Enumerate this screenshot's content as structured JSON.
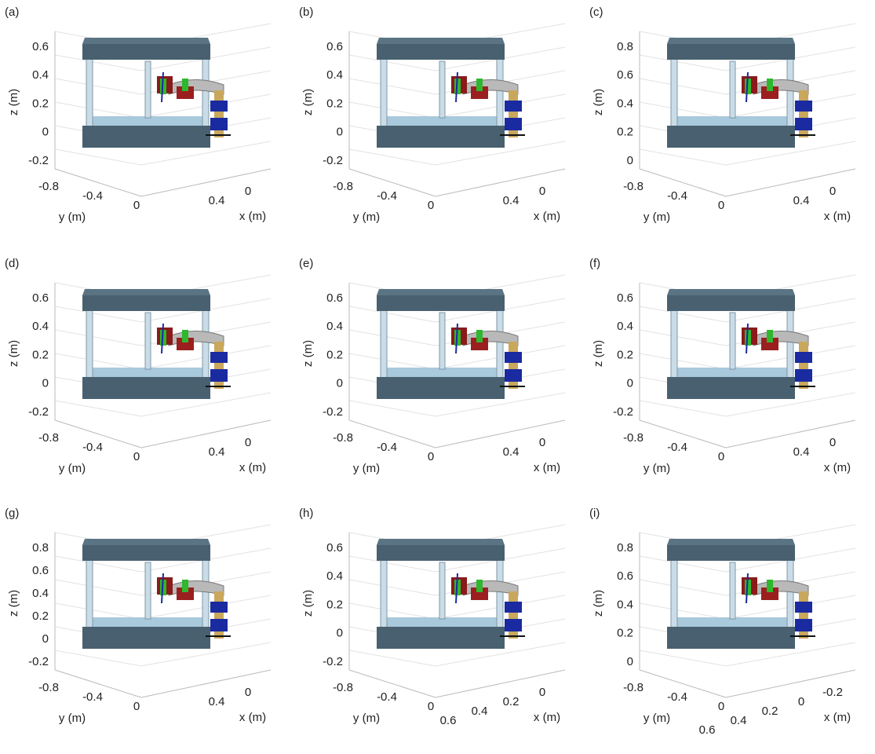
{
  "panels": [
    {
      "label": "(a)",
      "z_axis": "z (m)",
      "y_axis": "y (m)",
      "x_axis": "x (m)",
      "zticks": [
        "0.6",
        "0.4",
        "0.2",
        "0",
        "-0.2"
      ],
      "yticks": [
        "-0.8",
        "-0.4",
        "0"
      ],
      "xticks": [
        "0.4",
        "0"
      ]
    },
    {
      "label": "(b)",
      "z_axis": "z (m)",
      "y_axis": "y (m)",
      "x_axis": "x (m)",
      "zticks": [
        "0.6",
        "0.4",
        "0.2",
        "0",
        "-0.2"
      ],
      "yticks": [
        "-0.8",
        "-0.4",
        "0"
      ],
      "xticks": [
        "0.4",
        "0"
      ]
    },
    {
      "label": "(c)",
      "z_axis": "z (m)",
      "y_axis": "y (m)",
      "x_axis": "x (m)",
      "zticks": [
        "0.8",
        "0.6",
        "0.4",
        "0.2",
        "0"
      ],
      "yticks": [
        "-0.8",
        "-0.4",
        "0"
      ],
      "xticks": [
        "0.4",
        "0"
      ]
    },
    {
      "label": "(d)",
      "z_axis": "z (m)",
      "y_axis": "y (m)",
      "x_axis": "x (m)",
      "zticks": [
        "0.6",
        "0.4",
        "0.2",
        "0",
        "-0.2"
      ],
      "yticks": [
        "-0.8",
        "-0.4",
        "0"
      ],
      "xticks": [
        "0.4",
        "0"
      ]
    },
    {
      "label": "(e)",
      "z_axis": "z (m)",
      "y_axis": "y (m)",
      "x_axis": "x (m)",
      "zticks": [
        "0.6",
        "0.4",
        "0.2",
        "0",
        "-0.2"
      ],
      "yticks": [
        "-0.8",
        "-0.4",
        "0"
      ],
      "xticks": [
        "0.4",
        "0"
      ]
    },
    {
      "label": "(f)",
      "z_axis": "z (m)",
      "y_axis": "y (m)",
      "x_axis": "x (m)",
      "zticks": [
        "0.6",
        "0.4",
        "0.2",
        "0",
        "-0.2"
      ],
      "yticks": [
        "-0.8",
        "-0.4",
        "0"
      ],
      "xticks": [
        "0.4",
        "0"
      ]
    },
    {
      "label": "(g)",
      "z_axis": "z (m)",
      "y_axis": "y (m)",
      "x_axis": "x (m)",
      "zticks": [
        "0.8",
        "0.6",
        "0.4",
        "0.2",
        "0",
        "-0.2"
      ],
      "yticks": [
        "-0.8",
        "-0.4",
        "0"
      ],
      "xticks": [
        "0.4",
        "0"
      ]
    },
    {
      "label": "(h)",
      "z_axis": "z (m)",
      "y_axis": "y (m)",
      "x_axis": "x (m)",
      "zticks": [
        "0.6",
        "0.4",
        "0.2",
        "0",
        "-0.2"
      ],
      "yticks": [
        "-0.8",
        "-0.4",
        "0"
      ],
      "xticks": [
        "0.6",
        "0.4",
        "0.2",
        "0"
      ]
    },
    {
      "label": "(i)",
      "z_axis": "z (m)",
      "y_axis": "y (m)",
      "x_axis": "x (m)",
      "zticks": [
        "0.8",
        "0.6",
        "0.4",
        "0.2",
        "0"
      ],
      "yticks": [
        "-0.8",
        "-0.4",
        "0"
      ],
      "xticks": [
        "0.6",
        "0.4",
        "0.2",
        "0",
        "-0.2"
      ]
    }
  ]
}
